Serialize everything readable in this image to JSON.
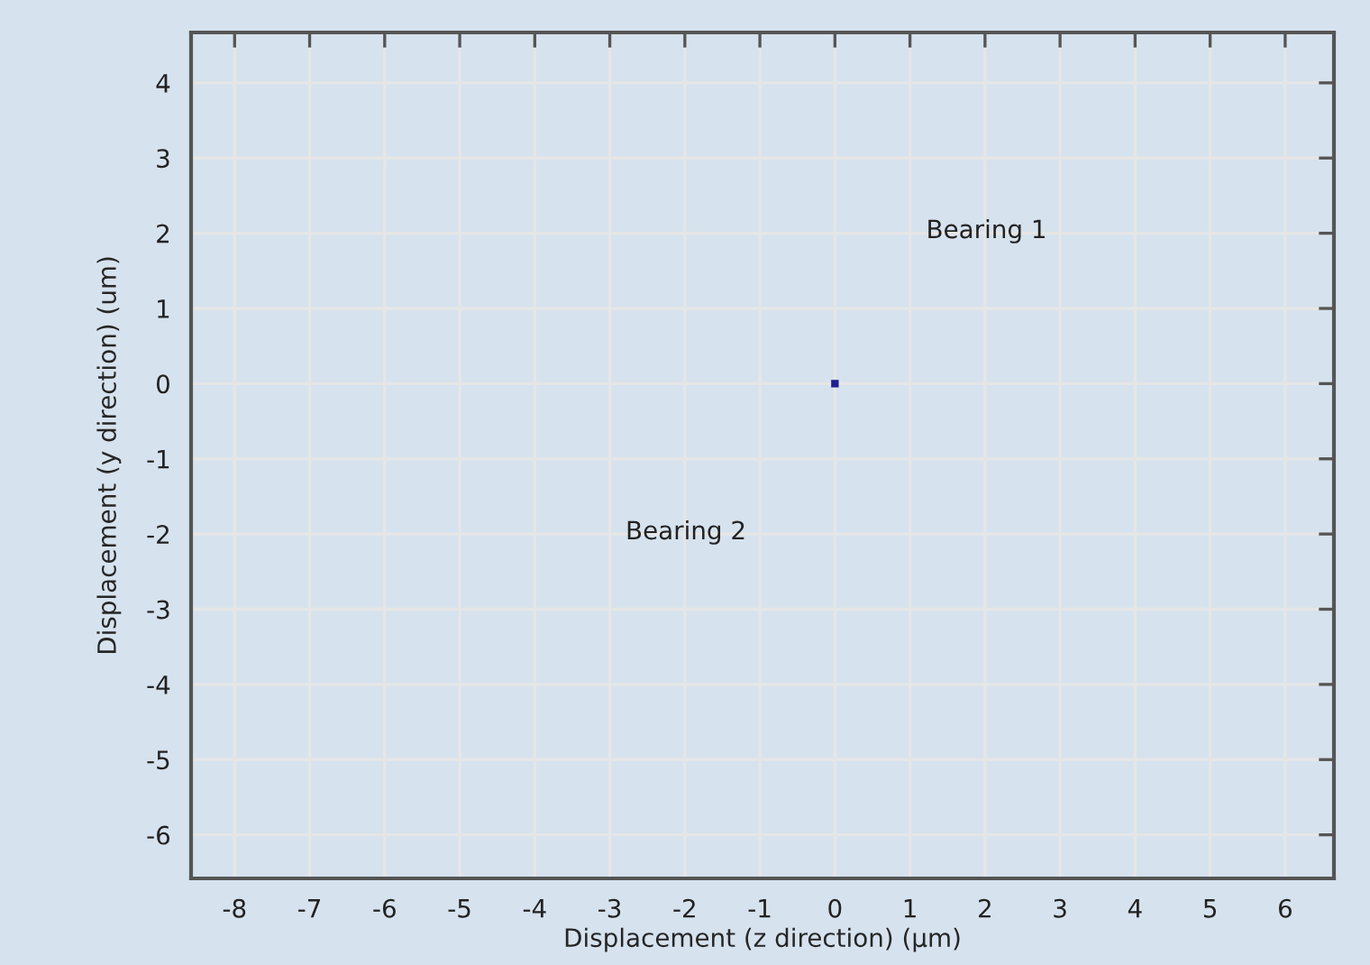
{
  "chart_data": {
    "type": "scatter",
    "xlabel": "Displacement (z direction) (µm)",
    "ylabel": "Displacement (y direction) (um)",
    "x": [
      0
    ],
    "values": [
      0
    ],
    "color": "#1f1f8f",
    "marker": "square",
    "xlim": [
      -8.58,
      6.65
    ],
    "ylim": [
      -6.58,
      4.67
    ],
    "xticks": [
      -8,
      -7,
      -6,
      -5,
      -4,
      -3,
      -2,
      -1,
      0,
      1,
      2,
      3,
      4,
      5,
      6
    ],
    "yticks": [
      -6,
      -5,
      -4,
      -3,
      -2,
      -1,
      0,
      1,
      2,
      3,
      4
    ],
    "grid": true,
    "annotations": [
      "Bearing 1",
      "Bearing 2"
    ]
  }
}
